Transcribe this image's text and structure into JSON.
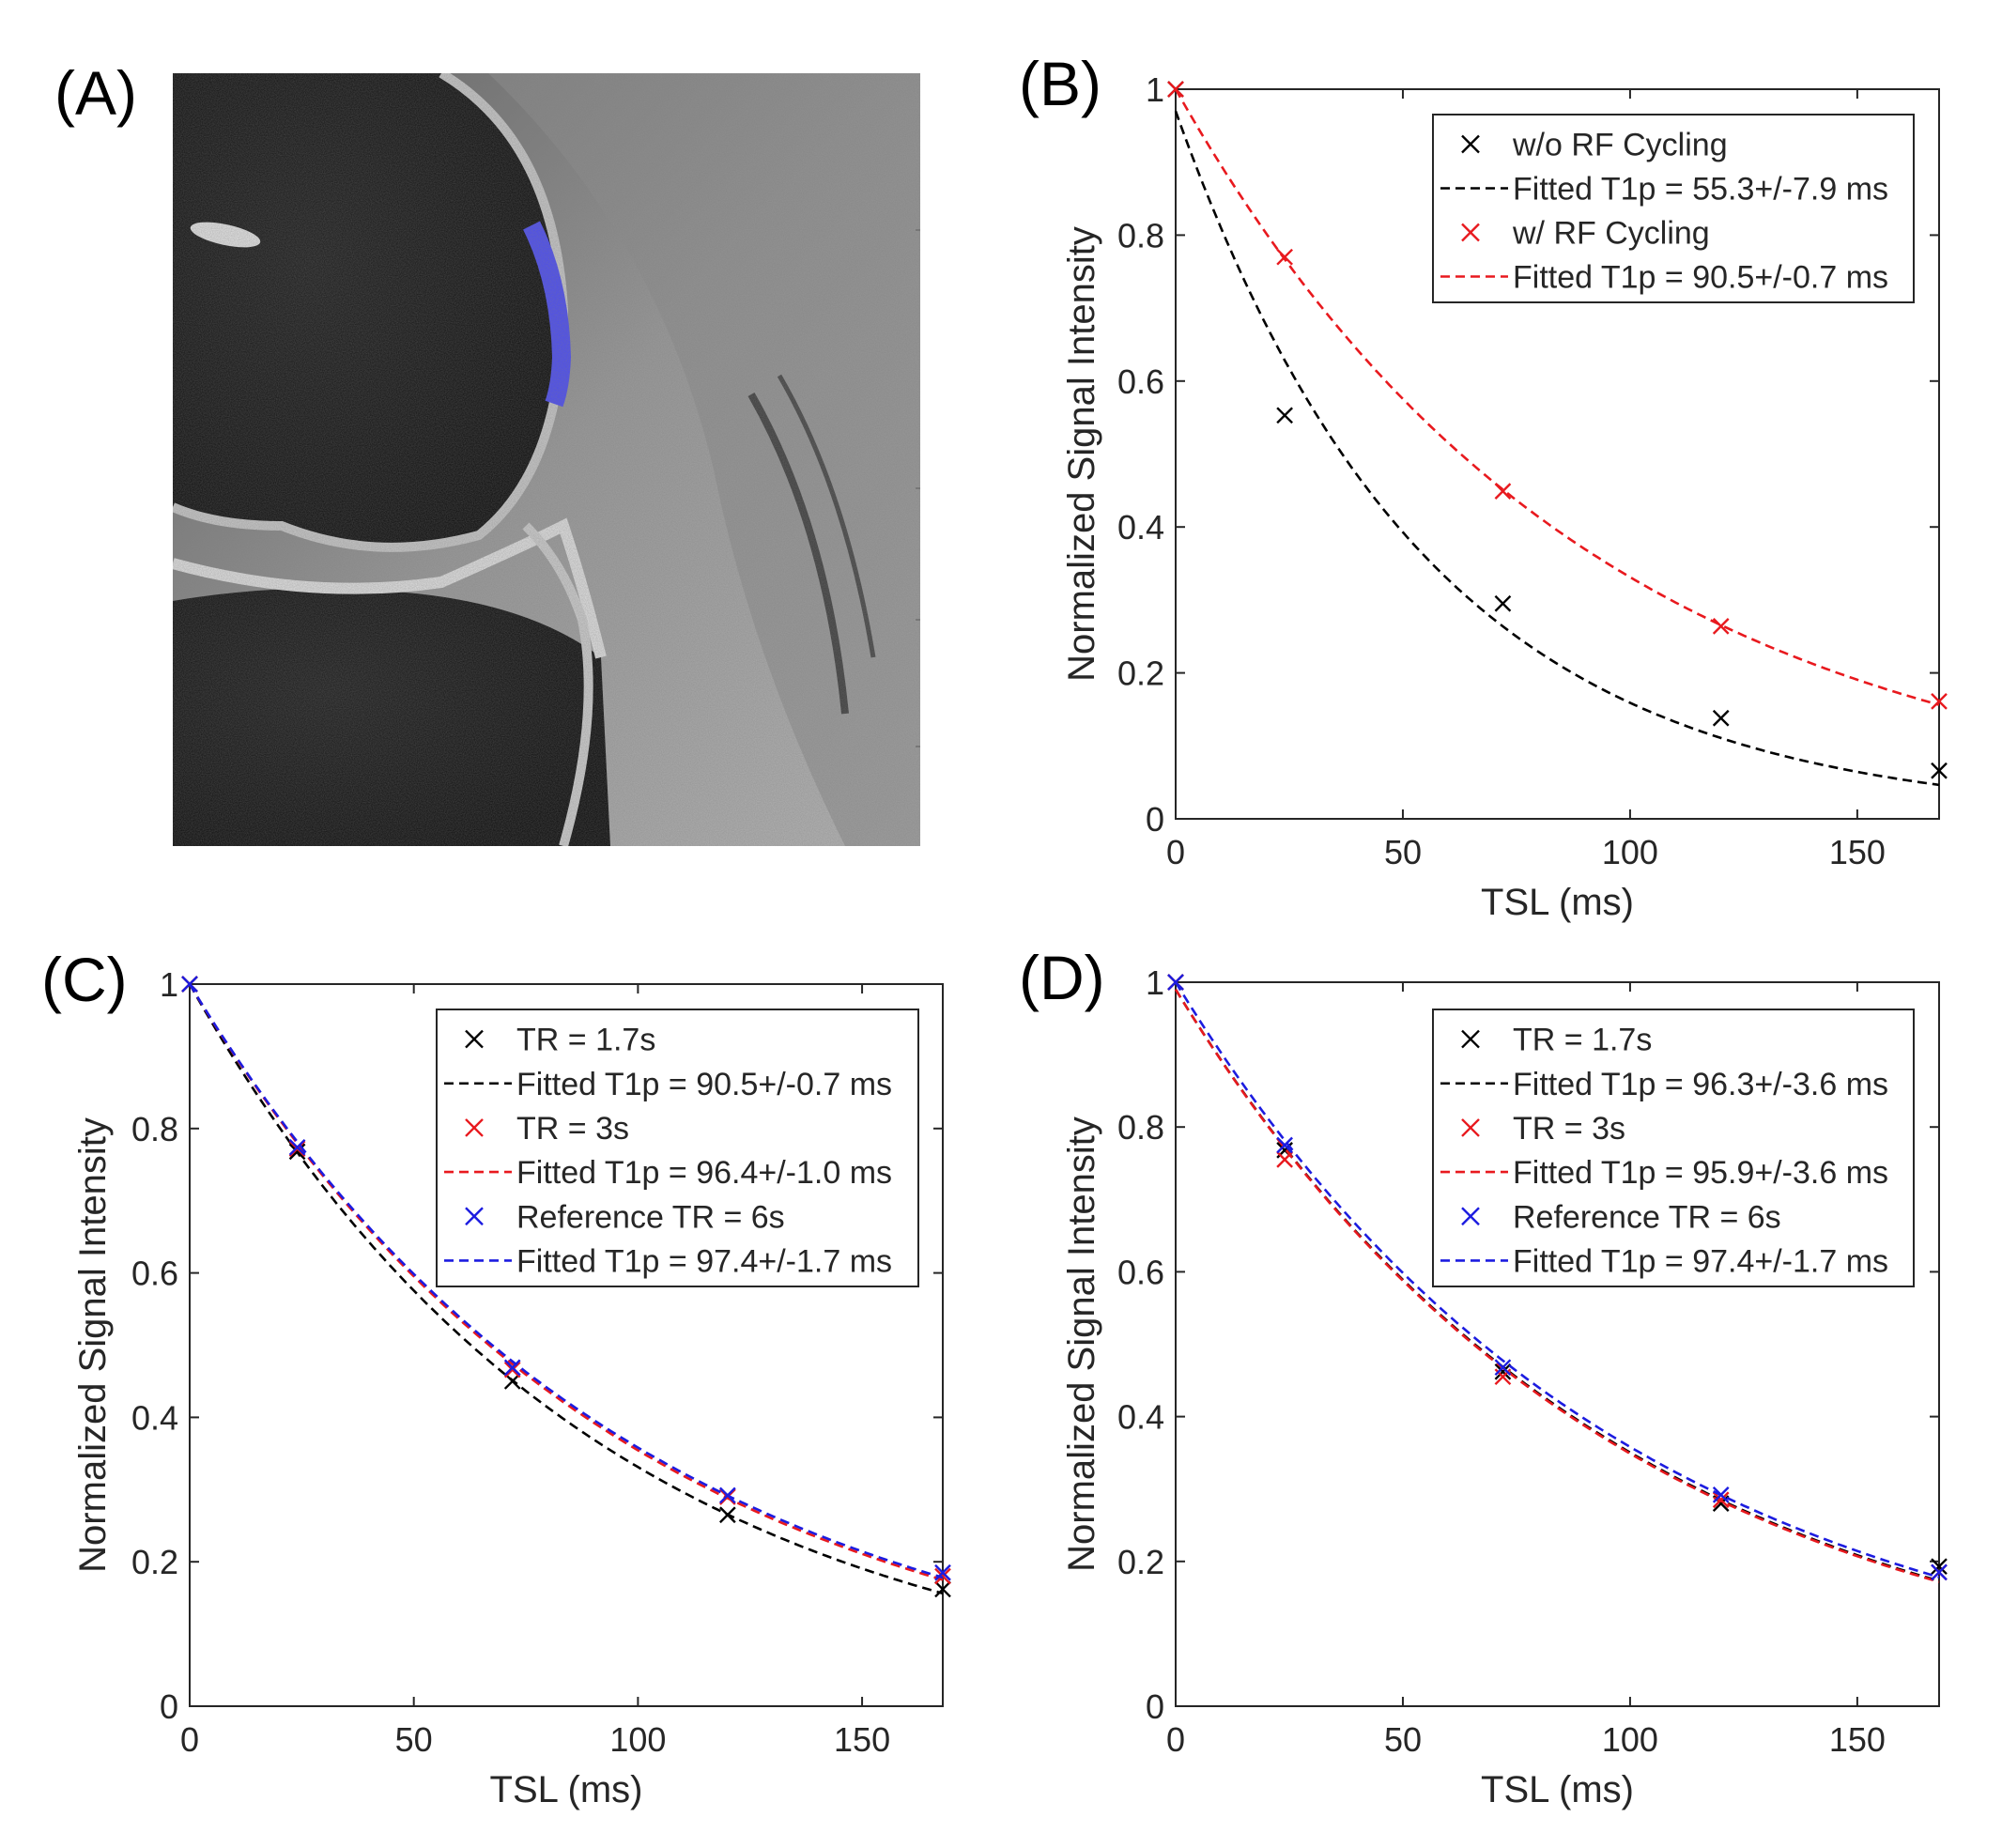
{
  "panel_a": {
    "label": "(A)",
    "image_description_name": "mri-knee-cartilage-roi"
  },
  "chart_data": [
    {
      "panel": "(B)",
      "type": "line",
      "xlabel": "TSL (ms)",
      "ylabel": "Normalized Signal Intensity",
      "xlim": [
        0,
        168
      ],
      "ylim": [
        0,
        1
      ],
      "xticks": [
        0,
        50,
        100,
        150
      ],
      "yticks": [
        0,
        0.2,
        0.4,
        0.6,
        0.8,
        1
      ],
      "ytick_labels": [
        "0",
        "0.2",
        "0.4",
        "0.6",
        "0.8",
        "1"
      ],
      "legend_position": "top-right",
      "series": [
        {
          "name": "w/o RF Cycling",
          "color": "#000000",
          "x": [
            0,
            24,
            72,
            120,
            168
          ],
          "values": [
            1.0,
            0.553,
            0.295,
            0.138,
            0.066
          ],
          "fit_label": "Fitted T1p = 55.3+/-7.9 ms",
          "fit_a": 0.97,
          "fit_t1p": 55.3
        },
        {
          "name": "w/ RF Cycling",
          "color": "#e8191e",
          "x": [
            0,
            24,
            72,
            120,
            168
          ],
          "values": [
            1.0,
            0.77,
            0.449,
            0.264,
            0.161
          ],
          "fit_label": "Fitted T1p = 90.5+/-0.7 ms",
          "fit_a": 1.0,
          "fit_t1p": 90.5
        }
      ]
    },
    {
      "panel": "(C)",
      "type": "line",
      "xlabel": "TSL (ms)",
      "ylabel": "Normalized Signal Intensity",
      "xlim": [
        0,
        168
      ],
      "ylim": [
        0,
        1
      ],
      "xticks": [
        0,
        50,
        100,
        150
      ],
      "yticks": [
        0,
        0.2,
        0.4,
        0.6,
        0.8,
        1
      ],
      "ytick_labels": [
        "0",
        "0.2",
        "0.4",
        "0.6",
        "0.8",
        "1"
      ],
      "legend_position": "top-right",
      "series": [
        {
          "name": "TR = 1.7s",
          "color": "#000000",
          "x": [
            0,
            24,
            72,
            120,
            168
          ],
          "values": [
            1.0,
            0.768,
            0.45,
            0.265,
            0.162
          ],
          "fit_label": "Fitted T1p = 90.5+/-0.7 ms",
          "fit_a": 1.0,
          "fit_t1p": 90.5
        },
        {
          "name": "TR = 3s",
          "color": "#e8191e",
          "x": [
            0,
            24,
            72,
            120,
            168
          ],
          "values": [
            1.0,
            0.772,
            0.466,
            0.29,
            0.18
          ],
          "fit_label": "Fitted T1p = 96.4+/-1.0 ms",
          "fit_a": 1.0,
          "fit_t1p": 96.4
        },
        {
          "name": "Reference TR = 6s",
          "color": "#1c1ce0",
          "x": [
            0,
            24,
            72,
            120,
            168
          ],
          "values": [
            1.0,
            0.774,
            0.469,
            0.292,
            0.185
          ],
          "fit_label": "Fitted T1p = 97.4+/-1.7 ms",
          "fit_a": 1.0,
          "fit_t1p": 97.4
        }
      ]
    },
    {
      "panel": "(D)",
      "type": "line",
      "xlabel": "TSL (ms)",
      "ylabel": "Normalized Signal Intensity",
      "xlim": [
        0,
        168
      ],
      "ylim": [
        0,
        1
      ],
      "xticks": [
        0,
        50,
        100,
        150
      ],
      "yticks": [
        0,
        0.2,
        0.4,
        0.6,
        0.8,
        1
      ],
      "ytick_labels": [
        "0",
        "0.2",
        "0.4",
        "0.6",
        "0.8",
        "1"
      ],
      "legend_position": "top-right",
      "series": [
        {
          "name": "TR = 1.7s",
          "color": "#000000",
          "x": [
            0,
            24,
            72,
            120,
            168
          ],
          "values": [
            1.0,
            0.768,
            0.462,
            0.28,
            0.193
          ],
          "fit_label": "Fitted T1p = 96.3+/-3.6 ms",
          "fit_a": 0.99,
          "fit_t1p": 96.3
        },
        {
          "name": "TR = 3s",
          "color": "#e8191e",
          "x": [
            0,
            24,
            72,
            120,
            168
          ],
          "values": [
            1.0,
            0.755,
            0.455,
            0.285,
            0.185
          ],
          "fit_label": "Fitted T1p = 95.9+/-3.6 ms",
          "fit_a": 0.99,
          "fit_t1p": 95.9
        },
        {
          "name": "Reference TR = 6s",
          "color": "#1c1ce0",
          "x": [
            0,
            24,
            72,
            120,
            168
          ],
          "values": [
            1.0,
            0.775,
            0.468,
            0.292,
            0.185
          ],
          "fit_label": "Fitted T1p = 97.4+/-1.7 ms",
          "fit_a": 1.0,
          "fit_t1p": 97.4
        }
      ]
    }
  ]
}
